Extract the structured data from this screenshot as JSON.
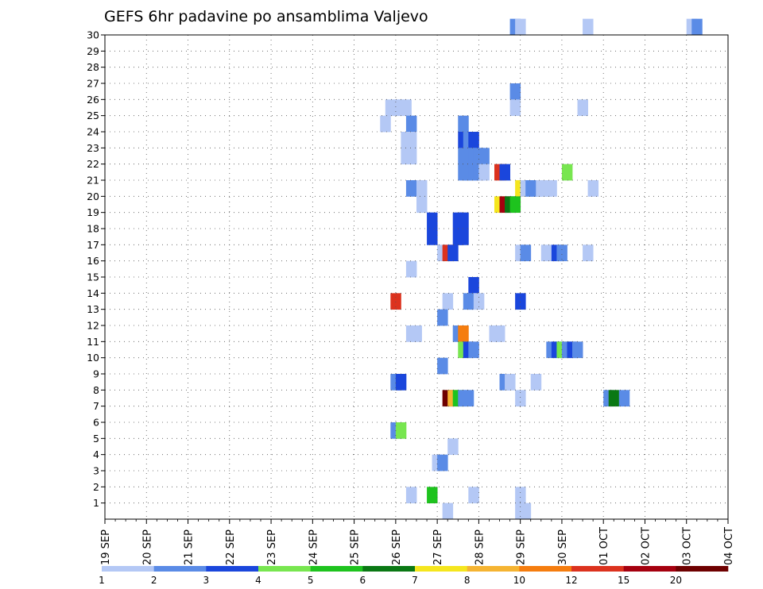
{
  "chart_data": {
    "type": "heatmap",
    "title": "GEFS 6hr padavine po ansamblima Valjevo",
    "x_tick_labels": [
      "19 SEP",
      "20 SEP",
      "21 SEP",
      "22 SEP",
      "23 SEP",
      "24 SEP",
      "25 SEP",
      "26 SEP",
      "27 SEP",
      "28 SEP",
      "29 SEP",
      "30 SEP",
      "01 OCT",
      "02 OCT",
      "03 OCT",
      "04 OCT"
    ],
    "y_tick_labels": [
      "1",
      "2",
      "3",
      "4",
      "5",
      "6",
      "7",
      "8",
      "9",
      "10",
      "11",
      "12",
      "13",
      "14",
      "15",
      "16",
      "17",
      "18",
      "19",
      "20",
      "21",
      "22",
      "23",
      "24",
      "25",
      "26",
      "27",
      "28",
      "29",
      "30"
    ],
    "time_step_hours": 6,
    "grid": true,
    "colorbar": {
      "position": "bottom",
      "labels": [
        "1",
        "2",
        "3",
        "4",
        "5",
        "6",
        "7",
        "8",
        "10",
        "12",
        "15",
        "20"
      ],
      "colors": [
        "#b4c8f5",
        "#5a8be6",
        "#1a46dc",
        "#78e650",
        "#1ec31e",
        "#0a7814",
        "#f5e61e",
        "#f5b432",
        "#f57d0f",
        "#dc321e",
        "#a5000f",
        "#6e0000"
      ]
    },
    "cells": [
      [
        30,
        28.75,
        1
      ],
      [
        30,
        28.875,
        0
      ],
      [
        30,
        30.5,
        0
      ],
      [
        30,
        33,
        0
      ],
      [
        30,
        33.125,
        1
      ],
      [
        26,
        28.75,
        1
      ],
      [
        25,
        25.75,
        0
      ],
      [
        25,
        25.875,
        0
      ],
      [
        25,
        26,
        0
      ],
      [
        25,
        26.125,
        0
      ],
      [
        25,
        28.75,
        0
      ],
      [
        25,
        30.375,
        0
      ],
      [
        24,
        25.625,
        0
      ],
      [
        24,
        26.25,
        1
      ],
      [
        24,
        27.5,
        1
      ],
      [
        23,
        26.125,
        0
      ],
      [
        23,
        26.25,
        0
      ],
      [
        23,
        27.5,
        2
      ],
      [
        23,
        27.625,
        1
      ],
      [
        23,
        27.75,
        2
      ],
      [
        22,
        26.125,
        0
      ],
      [
        22,
        26.25,
        0
      ],
      [
        22,
        27.5,
        1
      ],
      [
        22,
        27.625,
        1
      ],
      [
        22,
        27.75,
        1
      ],
      [
        22,
        27.875,
        1
      ],
      [
        22,
        28,
        1
      ],
      [
        21,
        27.5,
        1
      ],
      [
        21,
        27.625,
        1
      ],
      [
        21,
        27.75,
        1
      ],
      [
        21,
        27.875,
        1
      ],
      [
        21,
        28,
        0
      ],
      [
        21,
        28.375,
        9
      ],
      [
        21,
        28.5,
        2
      ],
      [
        21,
        30
      ],
      [
        20,
        26.25,
        1
      ],
      [
        20,
        26.5,
        0
      ],
      [
        20,
        28.875,
        6
      ],
      [
        20,
        29,
        0
      ],
      [
        20,
        29.125,
        1
      ],
      [
        20,
        29.25,
        1
      ],
      [
        20,
        29.375,
        0
      ],
      [
        20,
        29.5,
        0
      ],
      [
        20,
        29.625,
        0
      ],
      [
        20,
        30.625,
        0
      ],
      [
        19,
        26.5,
        0
      ],
      [
        19,
        28.375,
        6
      ],
      [
        19,
        28.5,
        10
      ],
      [
        19,
        28.625,
        5
      ],
      [
        19,
        28.75,
        4
      ],
      [
        18,
        26.75,
        2
      ],
      [
        18,
        27.375,
        2
      ],
      [
        18,
        27.5,
        2
      ],
      [
        17,
        26.75,
        2
      ],
      [
        17,
        27.375,
        2
      ],
      [
        17,
        27.5,
        2
      ],
      [
        16,
        27,
        0
      ],
      [
        16,
        27.125,
        9
      ],
      [
        16,
        27.25,
        2
      ],
      [
        16,
        28.875,
        0
      ],
      [
        16,
        29,
        1
      ],
      [
        16,
        29.5,
        0
      ],
      [
        16,
        29.75,
        2
      ],
      [
        16,
        29.875,
        1
      ],
      [
        16,
        30.5,
        0
      ],
      [
        15,
        26.25,
        0
      ],
      [
        14,
        27.75,
        2
      ],
      [
        13,
        25.875,
        9
      ],
      [
        13,
        27.125,
        0
      ],
      [
        13,
        27.625,
        1
      ],
      [
        13,
        27.75,
        1
      ],
      [
        13,
        27.875,
        0
      ],
      [
        13,
        28.875,
        2
      ],
      [
        12,
        27,
        1
      ],
      [
        11,
        26.25,
        0
      ],
      [
        11,
        26.375,
        0
      ],
      [
        11,
        27.375,
        1
      ],
      [
        11,
        27.5,
        8
      ],
      [
        11,
        28.25,
        0
      ],
      [
        11,
        28.375,
        0
      ],
      [
        10,
        27.5,
        3
      ],
      [
        10,
        27.625,
        2
      ],
      [
        10,
        27.75,
        1
      ],
      [
        10,
        29.625,
        1
      ],
      [
        10,
        29.75,
        2
      ],
      [
        10,
        29.875,
        3
      ],
      [
        10,
        30,
        1
      ],
      [
        10,
        30.125,
        2
      ],
      [
        10,
        30.25,
        1
      ],
      [
        9,
        27,
        1
      ],
      [
        8,
        25.875,
        1
      ],
      [
        8,
        26,
        2
      ],
      [
        8,
        28.5,
        1
      ],
      [
        8,
        28.625,
        0
      ],
      [
        8,
        29.25,
        0
      ],
      [
        7,
        27.125,
        11
      ],
      [
        7,
        27.25,
        7
      ],
      [
        7,
        27.375,
        4
      ],
      [
        7,
        27.5,
        1
      ],
      [
        7,
        27.625,
        1
      ],
      [
        7,
        28.875,
        0
      ],
      [
        7,
        31,
        1
      ],
      [
        7,
        31.125,
        5
      ],
      [
        7,
        31.375,
        1
      ],
      [
        5,
        25.875,
        1
      ],
      [
        5,
        26,
        3
      ],
      [
        4,
        27.25,
        0
      ],
      [
        3,
        26.875,
        0
      ],
      [
        3,
        27,
        1
      ],
      [
        1,
        26.25,
        0
      ],
      [
        1,
        26.75,
        4
      ],
      [
        1,
        27.75,
        0
      ],
      [
        1,
        28.875,
        0
      ],
      [
        0,
        27.125,
        0
      ],
      [
        0,
        28.875,
        0
      ],
      [
        0,
        29,
        0
      ]
    ]
  }
}
